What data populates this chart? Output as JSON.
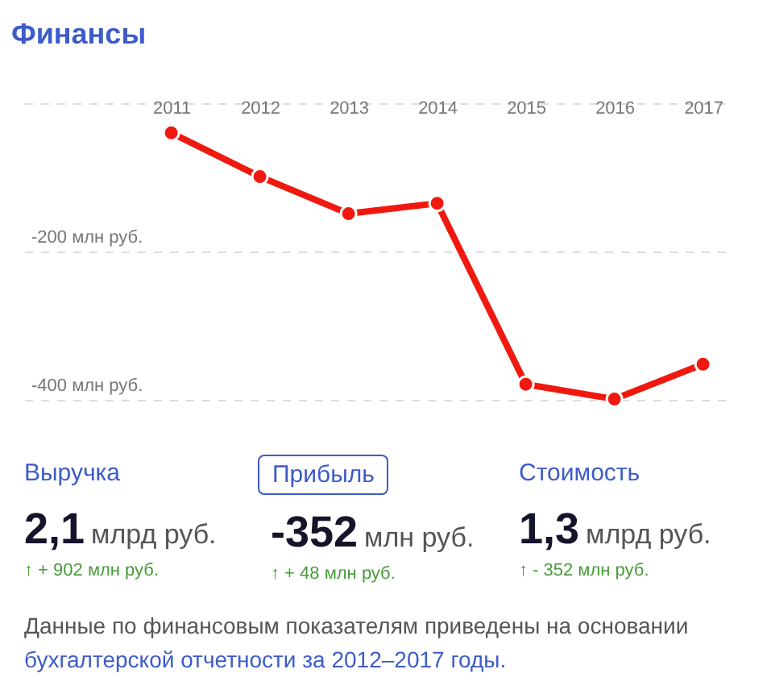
{
  "chart_data": [
    {
      "type": "line",
      "title": "Финансы",
      "categories": [
        "2011",
        "2012",
        "2013",
        "2014",
        "2015",
        "2016",
        "2017"
      ],
      "series": [
        {
          "color": "#f0190f",
          "values": [
            -40,
            -99,
            -149,
            -135,
            -379,
            -399,
            -352
          ]
        }
      ],
      "ylim": [
        -400,
        0
      ],
      "yticks": [
        {
          "value": -400,
          "label": "-400 млн руб."
        },
        {
          "value": -200,
          "label": "-200 млн руб."
        },
        {
          "value": 0,
          "label": null
        }
      ],
      "grid": "y",
      "marker": "circle"
    },
    {
      "type": "other",
      "annotations": [
        "Выручка",
        "2,1",
        "млрд руб.",
        "↑ + 902 млн руб.",
        "Прибыль",
        "-352",
        "млн руб.",
        "↑ + 48 млн руб.",
        "Стоимость",
        "1,3",
        "млрд руб.",
        "↑ - 352 млн руб.",
        "Данные по финансовым показателям приведены на основании",
        "бухгалтерской отчетности за 2012–2017 годы."
      ]
    }
  ]
}
